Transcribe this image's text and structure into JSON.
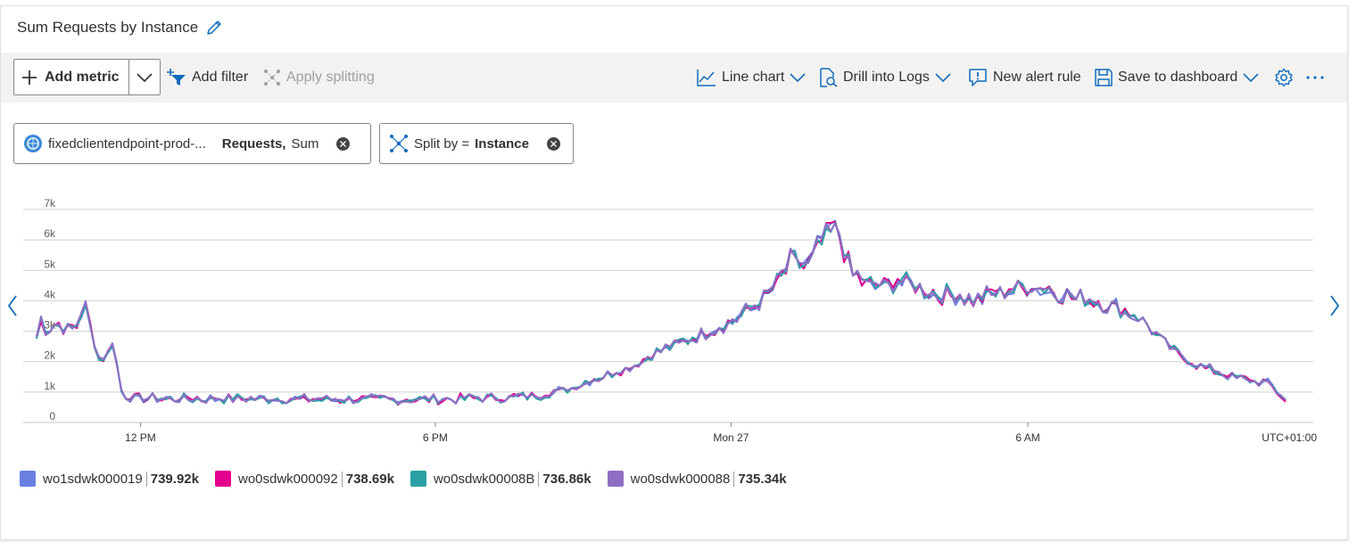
{
  "header": {
    "title": "Sum Requests by Instance"
  },
  "toolbar": {
    "add_metric": "Add metric",
    "add_filter": "Add filter",
    "apply_splitting": "Apply splitting",
    "line_chart": "Line chart",
    "drill_logs": "Drill into Logs",
    "new_alert": "New alert rule",
    "save_dashboard": "Save to dashboard"
  },
  "pills": {
    "metric_resource": "fixedclientendpoint-prod-...",
    "metric_name": "Requests,",
    "metric_agg": "Sum",
    "split_prefix": "Split by =",
    "split_dim": "Instance"
  },
  "chart_data": {
    "type": "line",
    "y_ticks": [
      "0",
      "1k",
      "2k",
      "3k",
      "4k",
      "5k",
      "6k",
      "7k"
    ],
    "ylim": [
      0,
      7000
    ],
    "x_ticks": [
      {
        "label": "12 PM",
        "pos": 0.104
      },
      {
        "label": "6 PM",
        "pos": 0.399
      },
      {
        "label": "Mon 27",
        "pos": 0.695
      },
      {
        "label": "6 AM",
        "pos": 0.992
      }
    ],
    "timezone": "UTC+01:00",
    "grid": true,
    "base_profile": [
      [
        0,
        2800
      ],
      [
        0.004,
        3400
      ],
      [
        0.01,
        3000
      ],
      [
        0.02,
        3300
      ],
      [
        0.03,
        3000
      ],
      [
        0.04,
        3200
      ],
      [
        0.048,
        3900
      ],
      [
        0.055,
        3000
      ],
      [
        0.062,
        2100
      ],
      [
        0.07,
        2150
      ],
      [
        0.076,
        2700
      ],
      [
        0.086,
        850
      ],
      [
        0.1,
        800
      ],
      [
        0.2,
        780
      ],
      [
        0.3,
        760
      ],
      [
        0.4,
        760
      ],
      [
        0.46,
        820
      ],
      [
        0.5,
        880
      ],
      [
        0.53,
        1100
      ],
      [
        0.56,
        1450
      ],
      [
        0.6,
        1900
      ],
      [
        0.62,
        2300
      ],
      [
        0.65,
        2700
      ],
      [
        0.68,
        3100
      ],
      [
        0.7,
        3400
      ],
      [
        0.72,
        3900
      ],
      [
        0.74,
        4500
      ],
      [
        0.755,
        5300
      ],
      [
        0.77,
        5100
      ],
      [
        0.785,
        5900
      ],
      [
        0.795,
        6300
      ],
      [
        0.805,
        6100
      ],
      [
        0.815,
        4900
      ],
      [
        0.83,
        4600
      ],
      [
        0.845,
        4400
      ],
      [
        0.86,
        4700
      ],
      [
        0.88,
        4500
      ],
      [
        0.9,
        4200
      ],
      [
        0.92,
        4200
      ],
      [
        0.94,
        4000
      ],
      [
        0.96,
        4300
      ],
      [
        0.98,
        4400
      ],
      [
        1.0,
        4500
      ],
      [
        1.02,
        4300
      ],
      [
        1.04,
        4100
      ],
      [
        1.06,
        4000
      ],
      [
        1.08,
        3800
      ],
      [
        1.1,
        3500
      ],
      [
        1.12,
        2900
      ],
      [
        1.14,
        2300
      ],
      [
        1.16,
        1900
      ],
      [
        1.18,
        1700
      ],
      [
        1.2,
        1450
      ],
      [
        1.22,
        1380
      ],
      [
        1.235,
        1250
      ],
      [
        1.245,
        900
      ],
      [
        1.25,
        700
      ]
    ],
    "series": [
      {
        "name": "wo1sdwk000019",
        "total": "739.92k",
        "color": "#6b7fe3"
      },
      {
        "name": "wo0sdwk000092",
        "total": "738.69k",
        "color": "#e3008c"
      },
      {
        "name": "wo0sdwk00008B",
        "total": "736.86k",
        "color": "#2aa0a4"
      },
      {
        "name": "wo0sdwk000088",
        "total": "735.34k",
        "color": "#8e6ec4"
      }
    ]
  },
  "icons": {
    "edit": "pencil-icon",
    "add": "plus-icon",
    "filter": "filter-icon",
    "split": "split-icon",
    "line_chart": "line-chart-icon",
    "logs": "logs-icon",
    "alert": "alert-icon",
    "save": "save-icon",
    "settings": "gear-icon",
    "more": "ellipsis-icon"
  }
}
